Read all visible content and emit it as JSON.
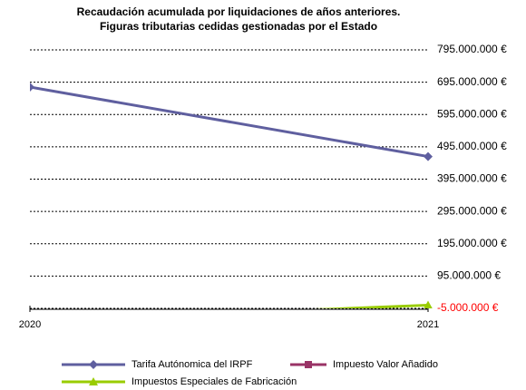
{
  "chart_data": {
    "type": "line",
    "title": "Recaudación acumulada por liquidaciones de años anteriores.",
    "subtitle": "Figuras tributarias cedidas gestionadas por el Estado",
    "categories": [
      "2020",
      "2021"
    ],
    "series": [
      {
        "name": "Tarifa Autónomica del IRPF",
        "color": "#5f5f9f",
        "marker": "diamond",
        "values": [
          680000000,
          465000000
        ]
      },
      {
        "name": "Impuesto Valor Añadido",
        "color": "#993366",
        "marker": "square",
        "values": [
          null,
          null
        ]
      },
      {
        "name": "Impuestos Especiales de Fabricación",
        "color": "#99cc00",
        "marker": "triangle",
        "values": [
          -45000000,
          5000000
        ]
      }
    ],
    "ylim": [
      -5000000,
      795000000
    ],
    "yticks": [
      {
        "value": -5000000,
        "label": "-5.000.000 €"
      },
      {
        "value": 95000000,
        "label": "95.000.000 €"
      },
      {
        "value": 195000000,
        "label": "195.000.000 €"
      },
      {
        "value": 295000000,
        "label": "295.000.000 €"
      },
      {
        "value": 395000000,
        "label": "395.000.000 €"
      },
      {
        "value": 495000000,
        "label": "495.000.000 €"
      },
      {
        "value": 595000000,
        "label": "595.000.000 €"
      },
      {
        "value": 695000000,
        "label": "695.000.000 €"
      },
      {
        "value": 795000000,
        "label": "795.000.000 €"
      }
    ],
    "negative_tick_color": "#ff0000",
    "grid": true,
    "y_axis_side": "right",
    "legend": "bottom"
  }
}
